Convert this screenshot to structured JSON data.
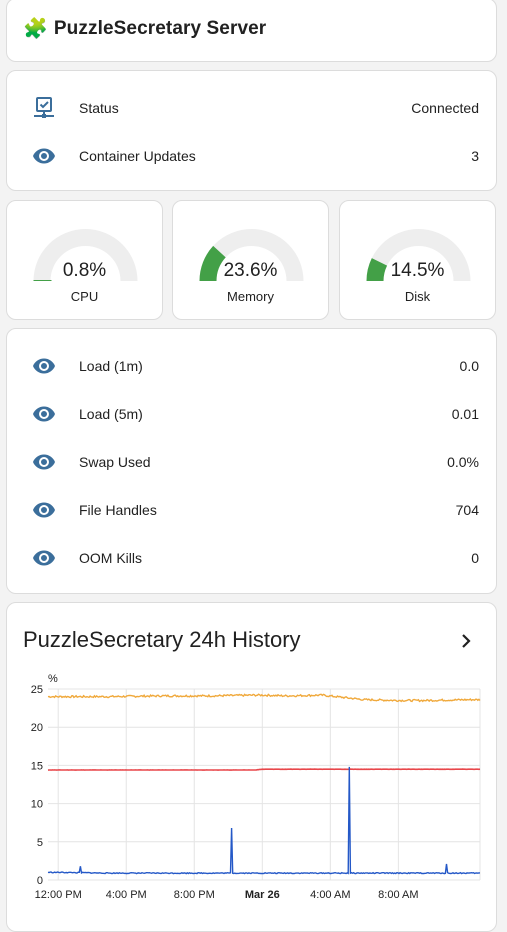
{
  "header": {
    "title": "PuzzleSecretary Server",
    "icon": "puzzle-piece-icon"
  },
  "status": [
    {
      "icon": "server-network-icon",
      "label": "Status",
      "value": "Connected"
    },
    {
      "icon": "eye-icon",
      "label": "Container Updates",
      "value": "3"
    }
  ],
  "gauges": [
    {
      "label": "CPU",
      "value_text": "0.8%",
      "percent": 0.8
    },
    {
      "label": "Memory",
      "value_text": "23.6%",
      "percent": 23.6
    },
    {
      "label": "Disk",
      "value_text": "14.5%",
      "percent": 14.5
    }
  ],
  "metrics": [
    {
      "icon": "eye-icon",
      "label": "Load (1m)",
      "value": "0.0"
    },
    {
      "icon": "eye-icon",
      "label": "Load (5m)",
      "value": "0.01"
    },
    {
      "icon": "eye-icon",
      "label": "Swap Used",
      "value": "0.0%"
    },
    {
      "icon": "eye-icon",
      "label": "File Handles",
      "value": "704"
    },
    {
      "icon": "eye-icon",
      "label": "OOM Kills",
      "value": "0"
    }
  ],
  "history": {
    "title": "PuzzleSecretary 24h History",
    "chevron": "chevron-right-icon"
  },
  "colors": {
    "accent": "#3b6e9b",
    "gauge_fill": "#43a047",
    "gauge_track": "#eeeeee",
    "memory_line": "#f0a93c",
    "disk_line": "#e8464a",
    "cpu_line": "#2458c7"
  },
  "chart_data": {
    "type": "line",
    "ylabel": "%",
    "ylim": [
      0,
      25
    ],
    "yticks": [
      0,
      5,
      10,
      15,
      20,
      25
    ],
    "xticks": [
      "12:00 PM",
      "4:00 PM",
      "8:00 PM",
      "Mar 26",
      "4:00 AM",
      "8:00 AM"
    ],
    "grid": true,
    "x_hours_from_start": [
      0,
      3,
      6,
      9,
      11.6,
      12,
      13.4,
      15.5,
      18,
      20,
      21.6,
      24
    ],
    "series": [
      {
        "values": [
          24.0,
          24.0,
          24.1,
          24.1,
          24.2,
          24.2,
          24.1,
          24.2,
          23.6,
          23.5,
          23.5,
          23.6
        ]
      },
      {
        "values": [
          14.4,
          14.4,
          14.4,
          14.4,
          14.4,
          14.5,
          14.5,
          14.5,
          14.5,
          14.5,
          14.5,
          14.5
        ]
      },
      {
        "values": [
          1.0,
          0.9,
          0.9,
          0.9,
          0.9,
          0.9,
          0.9,
          0.9,
          0.9,
          0.9,
          0.9,
          0.9
        ]
      }
    ],
    "spikes": [
      {
        "x": 1.3,
        "y": 1.8
      },
      {
        "x": 10.2,
        "y": 6.8
      },
      {
        "x": 17.1,
        "y": 14.8
      },
      {
        "x": 22.8,
        "y": 2.1
      }
    ],
    "x_range_hours": [
      -0.6,
      24.8
    ]
  }
}
